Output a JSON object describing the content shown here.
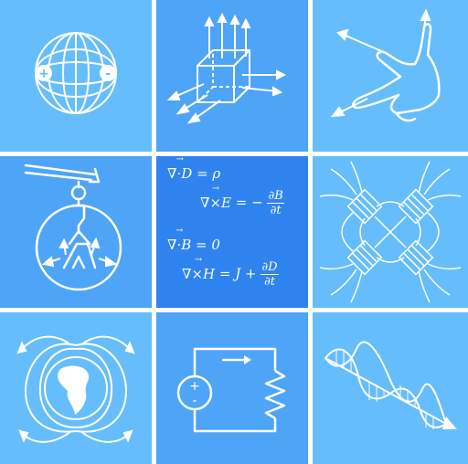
{
  "colors": {
    "light_tile": "#66bdfb",
    "mid_tile": "#4ea4f7",
    "dark_tile": "#2e83ee",
    "line": "#ffffff"
  },
  "tiles": [
    {
      "topic": "dipole-sphere-icon"
    },
    {
      "topic": "flux-cube-icon"
    },
    {
      "topic": "right-hand-rule-icon"
    },
    {
      "topic": "pendulum-magnet-icon"
    },
    {
      "topic": "maxwell-equations"
    },
    {
      "topic": "quadrupole-magnets-icon"
    },
    {
      "topic": "earth-magnetic-field-icon"
    },
    {
      "topic": "circuit-icon"
    },
    {
      "topic": "em-wave-icon"
    }
  ],
  "dipole": {
    "plus": "+",
    "minus": "-"
  },
  "circuit": {
    "plus": "+",
    "minus": "-"
  },
  "maxwell": {
    "eq1": {
      "lhs": "∇·D",
      "op": "=",
      "rhs": "ρ"
    },
    "eq2": {
      "lhs": "∇×E",
      "op": "= −",
      "num": "∂B",
      "den": "∂t"
    },
    "eq3": {
      "lhs": "∇·B",
      "op": "=",
      "rhs": "0"
    },
    "eq4": {
      "lhs": "∇×H",
      "op": "=",
      "mid": "J +",
      "num": "∂D",
      "den": "∂t"
    }
  }
}
